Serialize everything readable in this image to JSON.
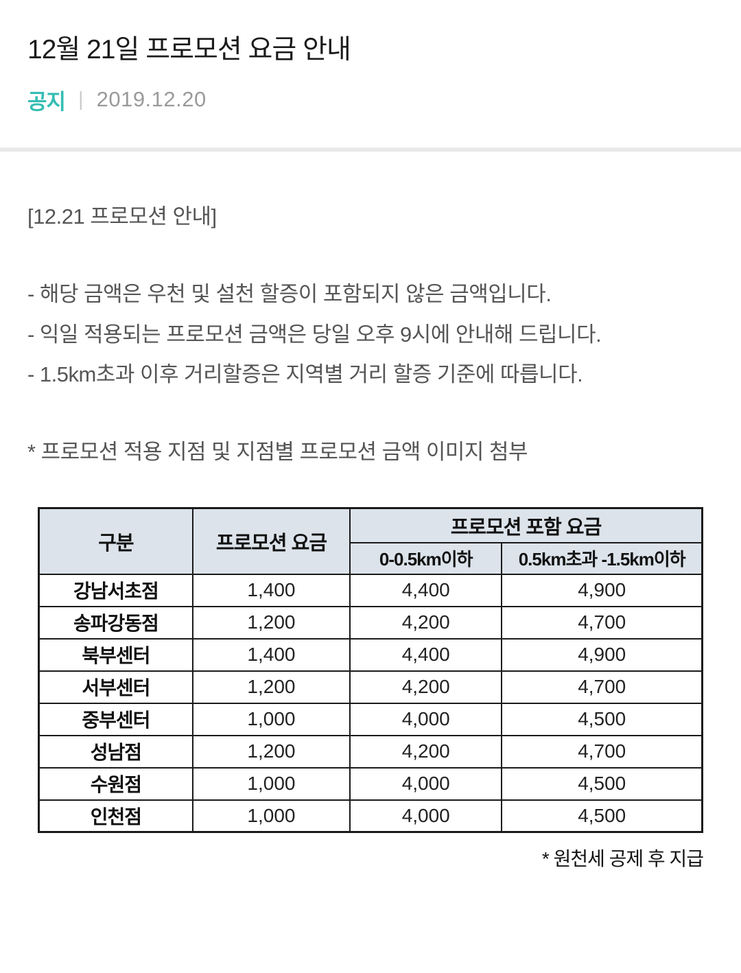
{
  "post": {
    "title": "12월 21일 프로모션 요금 안내",
    "meta": {
      "badge": "공지",
      "separator": "|",
      "date": "2019.12.20"
    }
  },
  "body": {
    "intro": "[12.21 프로모션 안내]",
    "notes": [
      "- 해당 금액은 우천 및 설천 할증이 포함되지 않은 금액입니다.",
      "- 익일 적용되는 프로모션 금액은 당일 오후 9시에 안내해 드립니다.",
      "- 1.5km초과 이후 거리할증은 지역별 거리 할증 기준에 따릅니다."
    ],
    "attachment_note": "* 프로모션 적용 지점 및 지점별 프로모션 금액 이미지 첨부"
  },
  "fee_table": {
    "headers": {
      "category": "구분",
      "promo_fee": "프로모션 요금",
      "promo_included": "프로모션 포함 요금",
      "sub_distance_1": "0-0.5km이하",
      "sub_distance_2": "0.5km초과 -1.5km이하"
    },
    "rows": [
      {
        "name": "강남서초점",
        "promo_fee": "1,400",
        "fee_0_05km": "4,400",
        "fee_05_15km": "4,900"
      },
      {
        "name": "송파강동점",
        "promo_fee": "1,200",
        "fee_0_05km": "4,200",
        "fee_05_15km": "4,700"
      },
      {
        "name": "북부센터",
        "promo_fee": "1,400",
        "fee_0_05km": "4,400",
        "fee_05_15km": "4,900"
      },
      {
        "name": "서부센터",
        "promo_fee": "1,200",
        "fee_0_05km": "4,200",
        "fee_05_15km": "4,700"
      },
      {
        "name": "중부센터",
        "promo_fee": "1,000",
        "fee_0_05km": "4,000",
        "fee_05_15km": "4,500"
      },
      {
        "name": "성남점",
        "promo_fee": "1,200",
        "fee_0_05km": "4,200",
        "fee_05_15km": "4,700"
      },
      {
        "name": "수원점",
        "promo_fee": "1,000",
        "fee_0_05km": "4,000",
        "fee_05_15km": "4,500"
      },
      {
        "name": "인천점",
        "promo_fee": "1,000",
        "fee_0_05km": "4,000",
        "fee_05_15km": "4,500"
      }
    ],
    "footnote": "* 원천세 공제 후 지급"
  },
  "colors": {
    "accent_teal": "#35bdb3",
    "body_text": "#555555",
    "date_text": "#9a9a9a",
    "divider": "#e9e9e9",
    "table_header_bg": "#dce3ea",
    "table_border": "#1a1a1a"
  }
}
